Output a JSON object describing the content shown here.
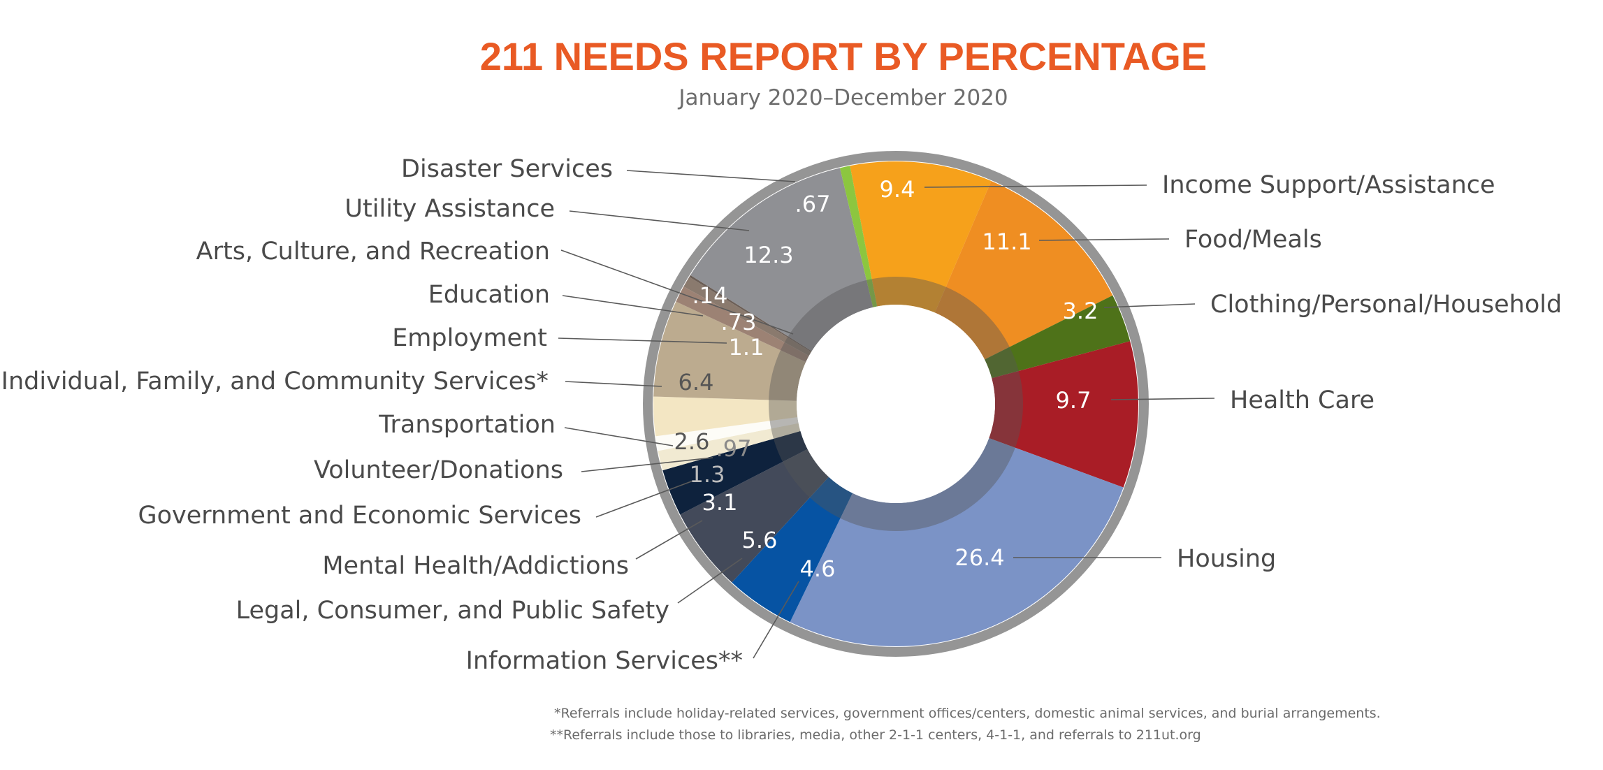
{
  "title": "211 NEEDS REPORT BY PERCENTAGE",
  "subtitle": "January 2020–December 2020",
  "colors": {
    "title": "#E95A24",
    "subtitle": "#6d6d6d",
    "label": "#4a4a4a",
    "ring": "#8a8a8a"
  },
  "chart_data": {
    "type": "pie",
    "variant": "donut",
    "slices": [
      {
        "label": "Income Support/Assistance",
        "value": 9.4,
        "value_label": "9.4",
        "color": "#F6A11B",
        "value_color": "#ffffff"
      },
      {
        "label": "Food/Meals",
        "value": 11.1,
        "value_label": "11.1",
        "color": "#EF8E22",
        "value_color": "#ffffff"
      },
      {
        "label": "Clothing/Personal/Household",
        "value": 3.2,
        "value_label": "3.2",
        "color": "#4E7219",
        "value_color": "#ffffff"
      },
      {
        "label": "Health Care",
        "value": 9.7,
        "value_label": "9.7",
        "color": "#A91D26",
        "value_color": "#ffffff"
      },
      {
        "label": "Housing",
        "value": 26.4,
        "value_label": "26.4",
        "color": "#7B93C6",
        "value_color": "#ffffff"
      },
      {
        "label": "Information Services**",
        "value": 4.6,
        "value_label": "4.6",
        "color": "#0653A3",
        "value_color": "#ffffff"
      },
      {
        "label": "Legal, Consumer, and Public Safety",
        "value": 5.6,
        "value_label": "5.6",
        "color": "#434A5A",
        "value_color": "#ffffff"
      },
      {
        "label": "Mental Health/Addictions",
        "value": 3.1,
        "value_label": "3.1",
        "color": "#0E223D",
        "value_color": "#ffffff"
      },
      {
        "label": "Government and Economic Services",
        "value": 1.3,
        "value_label": "1.3",
        "color": "#F1EAD2",
        "value_color": "#bdbdbd"
      },
      {
        "label": "Volunteer/Donations",
        "value": 0.97,
        "value_label": ".97",
        "color": "#FDFCF7",
        "value_color": "#8a8a8a"
      },
      {
        "label": "Transportation",
        "value": 2.6,
        "value_label": "2.6",
        "color": "#F3E6C3",
        "value_color": "#555555"
      },
      {
        "label": "Individual, Family, and Community Services*",
        "value": 6.4,
        "value_label": "6.4",
        "color": "#BCAB8F",
        "value_color": "#555555"
      },
      {
        "label": "Employment",
        "value": 1.1,
        "value_label": "1.1",
        "color": "#9C8274",
        "value_color": "#ffffff"
      },
      {
        "label": "Education",
        "value": 0.73,
        "value_label": ".73",
        "color": "#8A7A6E",
        "value_color": "#ffffff"
      },
      {
        "label": "Arts, Culture, and Recreation",
        "value": 0.14,
        "value_label": ".14",
        "color": "#6B5E56",
        "value_color": "#ffffff"
      },
      {
        "label": "Utility Assistance",
        "value": 12.3,
        "value_label": "12.3",
        "color": "#8F9094",
        "value_color": "#ffffff"
      },
      {
        "label": "Disaster Services",
        "value": 0.67,
        "value_label": ".67",
        "color": "#8CC63F",
        "value_color": "#ffffff"
      }
    ]
  },
  "footnotes": [
    "*Referrals include holiday-related services, government offices/centers, domestic animal services, and burial arrangements.",
    "**Referrals include those to libraries, media, other 2-1-1 centers, 4-1-1, and referrals to 211ut.org"
  ]
}
